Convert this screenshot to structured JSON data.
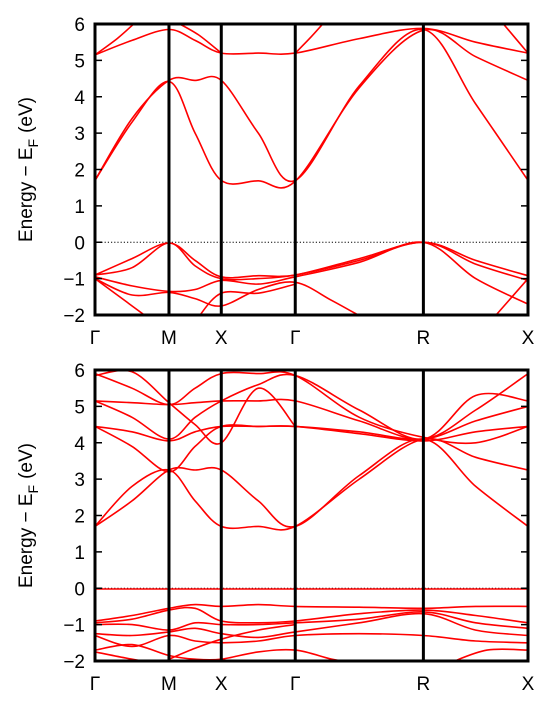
{
  "chart_data": [
    {
      "type": "line",
      "ylabel": "Energy − E",
      "ylabel_sub": "F",
      "ylabel_unit": "(eV)",
      "ylim": [
        -2,
        6
      ],
      "yticks": [
        "−2",
        "−1",
        "0",
        "1",
        "2",
        "3",
        "4",
        "5",
        "6"
      ],
      "kpoints": [
        {
          "label": "Γ",
          "pos": 0
        },
        {
          "label": "M",
          "pos": 1
        },
        {
          "label": "X",
          "pos": 1.7071
        },
        {
          "label": "Γ",
          "pos": 2.7071
        },
        {
          "label": "R",
          "pos": 4.4392
        },
        {
          "label": "X",
          "pos": 5.8534
        }
      ],
      "fermi_level": 0,
      "line_color": "#ff0000",
      "bands": [
        [
          [
            0,
            5.15
          ],
          [
            0.5,
            5.55
          ],
          [
            1,
            5.85
          ],
          [
            1.3536,
            5.55
          ],
          [
            1.7071,
            5.2
          ],
          [
            2.2071,
            5.2
          ],
          [
            2.7071,
            5.2
          ],
          [
            3.5731,
            5.6
          ],
          [
            4.4392,
            5.88
          ],
          [
            5.1463,
            5.5
          ],
          [
            5.8534,
            5.2
          ]
        ],
        [
          [
            0,
            5.15
          ],
          [
            0.3,
            5.6
          ],
          [
            0.55,
            6.05
          ]
        ],
        [
          [
            0,
            1.7
          ],
          [
            0.5,
            3.4
          ],
          [
            1,
            4.45
          ],
          [
            1.3536,
            4.45
          ],
          [
            1.7071,
            4.45
          ],
          [
            2.2071,
            3.0
          ],
          [
            2.7071,
            1.7
          ],
          [
            3.5731,
            4.3
          ],
          [
            4.4392,
            5.85
          ],
          [
            5.1463,
            3.8
          ],
          [
            5.8534,
            1.7
          ]
        ],
        [
          [
            0,
            1.7
          ],
          [
            0.5,
            3.3
          ],
          [
            1,
            4.42
          ],
          [
            1.3536,
            3.0
          ],
          [
            1.7071,
            1.7
          ],
          [
            2.2071,
            1.69
          ],
          [
            2.7071,
            1.68
          ],
          [
            3.5731,
            4.25
          ],
          [
            4.4392,
            5.83
          ],
          [
            5.1463,
            5.1
          ],
          [
            5.8534,
            4.45
          ]
        ],
        [
          [
            1.1,
            6.05
          ],
          [
            1.4,
            5.7
          ],
          [
            1.7071,
            5.2
          ]
        ],
        [
          [
            2.7071,
            5.2
          ],
          [
            2.9,
            5.6
          ],
          [
            3.1,
            6.05
          ]
        ],
        [
          [
            5.5,
            6.05
          ],
          [
            5.8534,
            5.2
          ]
        ],
        [
          [
            0,
            -0.9
          ],
          [
            0.5,
            -0.45
          ],
          [
            1,
            -0.02
          ],
          [
            1.3536,
            -0.5
          ],
          [
            1.7071,
            -0.95
          ],
          [
            2.2071,
            -0.92
          ],
          [
            2.7071,
            -0.9
          ],
          [
            3.5731,
            -0.45
          ],
          [
            4.4392,
            0
          ],
          [
            5.1463,
            -0.5
          ],
          [
            5.8534,
            -0.92
          ]
        ],
        [
          [
            0,
            -0.9
          ],
          [
            0.5,
            -0.7
          ],
          [
            1,
            -0.02
          ],
          [
            1.3536,
            -0.65
          ],
          [
            1.7071,
            -1.0
          ],
          [
            2.2071,
            -1.0
          ],
          [
            2.7071,
            -0.9
          ],
          [
            3.5731,
            -0.5
          ],
          [
            4.4392,
            0
          ],
          [
            5.1463,
            -0.6
          ],
          [
            5.8534,
            -1.05
          ]
        ],
        [
          [
            0,
            -0.95
          ],
          [
            0.5,
            -1.2
          ],
          [
            1,
            -1.35
          ],
          [
            1.3536,
            -1.3
          ],
          [
            1.7071,
            -1.05
          ],
          [
            2.2071,
            -1.15
          ],
          [
            2.7071,
            -0.95
          ],
          [
            3.5731,
            -0.55
          ],
          [
            4.4392,
            0
          ],
          [
            5.1463,
            -1.0
          ],
          [
            5.8534,
            -1.7
          ]
        ],
        [
          [
            0,
            -1.0
          ],
          [
            0.5,
            -1.45
          ],
          [
            1,
            -1.38
          ],
          [
            1.3536,
            -1.55
          ],
          [
            1.7071,
            -1.75
          ],
          [
            2.2071,
            -1.3
          ],
          [
            2.7071,
            -1.1
          ],
          [
            3.2,
            -1.6
          ],
          [
            3.6,
            -2.05
          ]
        ],
        [
          [
            0,
            -1.0
          ],
          [
            0.4,
            -1.6
          ],
          [
            0.7,
            -2.05
          ]
        ],
        [
          [
            1.4,
            -2.05
          ],
          [
            1.7071,
            -1.4
          ],
          [
            2.2071,
            -1.4
          ],
          [
            2.7071,
            -1.15
          ]
        ],
        [
          [
            5.4,
            -2.05
          ],
          [
            5.8534,
            -1.0
          ]
        ]
      ]
    },
    {
      "type": "line",
      "ylabel": "Energy − E",
      "ylabel_sub": "F",
      "ylabel_unit": "(eV)",
      "ylim": [
        -2,
        6
      ],
      "yticks": [
        "−2",
        "−1",
        "0",
        "1",
        "2",
        "3",
        "4",
        "5",
        "6"
      ],
      "kpoints": [
        {
          "label": "Γ",
          "pos": 0
        },
        {
          "label": "M",
          "pos": 1
        },
        {
          "label": "X",
          "pos": 1.7071
        },
        {
          "label": "Γ",
          "pos": 2.7071
        },
        {
          "label": "R",
          "pos": 4.4392
        },
        {
          "label": "X",
          "pos": 5.8534
        }
      ],
      "fermi_level": 0,
      "line_color": "#ff0000",
      "bands": [
        [
          [
            0,
            1.7
          ],
          [
            0.5,
            2.4
          ],
          [
            1,
            3.25
          ],
          [
            1.3536,
            3.25
          ],
          [
            1.7071,
            3.25
          ],
          [
            2.2071,
            2.4
          ],
          [
            2.7071,
            1.7
          ],
          [
            3.5731,
            3.1
          ],
          [
            4.4392,
            4.1
          ],
          [
            5.1463,
            2.8
          ],
          [
            5.8534,
            1.7
          ]
        ],
        [
          [
            0,
            1.7
          ],
          [
            0.5,
            2.8
          ],
          [
            1,
            3.25
          ],
          [
            1.3536,
            2.4
          ],
          [
            1.7071,
            1.7
          ],
          [
            2.2071,
            1.7
          ],
          [
            2.7071,
            1.7
          ],
          [
            3.5731,
            3.0
          ],
          [
            4.4392,
            4.1
          ],
          [
            5.1463,
            3.6
          ],
          [
            5.8534,
            3.25
          ]
        ],
        [
          [
            0,
            4.45
          ],
          [
            0.5,
            3.9
          ],
          [
            1,
            3.2
          ],
          [
            1.3536,
            3.9
          ],
          [
            1.7071,
            4.45
          ],
          [
            2.2071,
            4.45
          ],
          [
            2.7071,
            4.45
          ],
          [
            3.5731,
            4.3
          ],
          [
            4.4392,
            4.1
          ],
          [
            5.1463,
            4.6
          ],
          [
            5.8534,
            5.0
          ]
        ],
        [
          [
            0,
            4.45
          ],
          [
            0.5,
            4.3
          ],
          [
            1,
            4.05
          ],
          [
            1.3536,
            4.3
          ],
          [
            1.7071,
            4.45
          ],
          [
            2.2071,
            4.45
          ],
          [
            2.7071,
            4.45
          ],
          [
            3.5731,
            4.25
          ],
          [
            4.4392,
            4.05
          ],
          [
            5.1463,
            4.3
          ],
          [
            5.8534,
            4.45
          ]
        ],
        [
          [
            0,
            5.15
          ],
          [
            0.5,
            5.1
          ],
          [
            1,
            5.05
          ],
          [
            1.3536,
            5.1
          ],
          [
            1.7071,
            5.15
          ],
          [
            2.2071,
            5.15
          ],
          [
            2.7071,
            5.15
          ],
          [
            3.5731,
            4.6
          ],
          [
            4.4392,
            4.1
          ],
          [
            5.1463,
            4.9
          ],
          [
            5.8534,
            5.9
          ]
        ],
        [
          [
            0,
            5.15
          ],
          [
            0.5,
            4.7
          ],
          [
            1,
            4.1
          ],
          [
            1.3536,
            4.7
          ],
          [
            1.7071,
            5.15
          ],
          [
            2.2071,
            5.6
          ],
          [
            2.7071,
            5.85
          ],
          [
            3.5731,
            4.9
          ],
          [
            4.4392,
            4.1
          ],
          [
            5.1463,
            5.3
          ],
          [
            5.8534,
            5.15
          ]
        ],
        [
          [
            0,
            5.9
          ],
          [
            0.5,
            5.5
          ],
          [
            1,
            5.05
          ],
          [
            1.3536,
            5.5
          ],
          [
            1.7071,
            5.9
          ],
          [
            2.2071,
            5.9
          ],
          [
            2.7071,
            5.85
          ],
          [
            3.5731,
            4.7
          ],
          [
            4.4392,
            4.15
          ],
          [
            5.1463,
            4.0
          ],
          [
            5.8534,
            4.45
          ]
        ],
        [
          [
            0,
            5.85
          ],
          [
            0.5,
            5.95
          ],
          [
            1,
            5.1
          ],
          [
            1.3536,
            4.5
          ],
          [
            1.7071,
            4.0
          ],
          [
            2.2071,
            5.5
          ],
          [
            2.7071,
            4.45
          ]
        ],
        [
          [
            0,
            -0.9
          ],
          [
            0.5,
            -0.75
          ],
          [
            1,
            -0.55
          ],
          [
            1.3536,
            -0.45
          ],
          [
            1.7071,
            -0.5
          ],
          [
            2.2071,
            -0.45
          ],
          [
            2.7071,
            -0.5
          ],
          [
            3.5731,
            -0.52
          ],
          [
            4.4392,
            -0.55
          ],
          [
            5.1463,
            -0.5
          ],
          [
            5.8534,
            -0.5
          ]
        ],
        [
          [
            0,
            -0.95
          ],
          [
            0.5,
            -0.85
          ],
          [
            1,
            -0.6
          ],
          [
            1.3536,
            -0.55
          ],
          [
            1.7071,
            -0.9
          ],
          [
            2.2071,
            -0.95
          ],
          [
            2.7071,
            -0.9
          ],
          [
            3.5731,
            -0.7
          ],
          [
            4.4392,
            -0.6
          ],
          [
            5.1463,
            -0.75
          ],
          [
            5.8534,
            -0.95
          ]
        ],
        [
          [
            0,
            -1.0
          ],
          [
            0.5,
            -1.0
          ],
          [
            1,
            -1.15
          ],
          [
            1.3536,
            -0.95
          ],
          [
            1.7071,
            -1.0
          ],
          [
            2.2071,
            -1.0
          ],
          [
            2.7071,
            -0.95
          ],
          [
            3.5731,
            -0.85
          ],
          [
            4.4392,
            -0.65
          ],
          [
            5.1463,
            -0.95
          ],
          [
            5.8534,
            -1.1
          ]
        ],
        [
          [
            0,
            -1.25
          ],
          [
            0.5,
            -1.3
          ],
          [
            1,
            -1.2
          ],
          [
            1.3536,
            -1.1
          ],
          [
            1.7071,
            -1.25
          ],
          [
            2.2071,
            -1.35
          ],
          [
            2.7071,
            -1.2
          ],
          [
            3.5731,
            -0.95
          ],
          [
            4.4392,
            -0.7
          ],
          [
            5.1463,
            -1.15
          ],
          [
            5.8534,
            -1.3
          ]
        ],
        [
          [
            0,
            -1.3
          ],
          [
            0.5,
            -1.6
          ],
          [
            1,
            -1.3
          ],
          [
            1.3536,
            -1.45
          ],
          [
            1.7071,
            -1.5
          ],
          [
            2.2071,
            -1.45
          ],
          [
            2.7071,
            -1.3
          ],
          [
            3.5731,
            -1.25
          ],
          [
            4.4392,
            -1.3
          ],
          [
            5.1463,
            -1.45
          ],
          [
            5.8534,
            -1.5
          ]
        ],
        [
          [
            0,
            -1.7
          ],
          [
            0.5,
            -1.55
          ],
          [
            1,
            -1.85
          ],
          [
            1.3536,
            -1.95
          ],
          [
            1.7071,
            -1.95
          ],
          [
            2.2071,
            -1.75
          ],
          [
            2.7071,
            -1.7
          ],
          [
            3.2,
            -1.95
          ],
          [
            3.5,
            -2.05
          ]
        ],
        [
          [
            0,
            -1.75
          ],
          [
            0.5,
            -1.95
          ],
          [
            0.8,
            -2.05
          ]
        ],
        [
          [
            4.8,
            -2.05
          ],
          [
            5.3,
            -1.7
          ],
          [
            5.8534,
            -1.7
          ]
        ],
        [
          [
            1,
            -1.95
          ],
          [
            1.3536,
            -1.65
          ],
          [
            1.7071,
            -1.4
          ],
          [
            2.2071,
            -1.15
          ],
          [
            2.7071,
            -1.0
          ]
        ],
        [
          [
            0,
            -0.02
          ],
          [
            5.8534,
            -0.02
          ]
        ]
      ]
    }
  ]
}
